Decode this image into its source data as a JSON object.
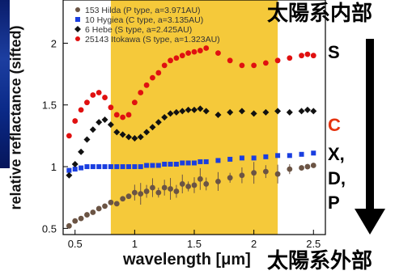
{
  "labels": {
    "inner": "太陽系内部",
    "outer": "太陽系外部",
    "xlabel": "wavelength [μm]",
    "ylabel": "relative reflactance (sifted)"
  },
  "classes": [
    {
      "text": "S",
      "color": "#000000"
    },
    {
      "text": "C",
      "color": "#e53410"
    },
    {
      "text": "X,",
      "color": "#000000"
    },
    {
      "text": "D,",
      "color": "#000000"
    },
    {
      "text": "P",
      "color": "#000000"
    }
  ],
  "colors": {
    "band": "#f5c93a",
    "arrow": "#000000"
  },
  "chart_data": {
    "type": "scatter",
    "xlabel": "wavelength [μm]",
    "ylabel": "relative reflactance (sifted)",
    "xlim": [
      0.4,
      2.6
    ],
    "ylim": [
      0.45,
      2.35
    ],
    "xticks": [
      0.5,
      1,
      1.5,
      2,
      2.5
    ],
    "xtick_labels": [
      "0.5",
      "1",
      "1.5",
      "2",
      "2.5"
    ],
    "yticks": [
      0.5,
      1,
      1.5,
      2
    ],
    "ytick_labels": [
      "0.5",
      "1",
      "1.5",
      "2"
    ],
    "shaded_band": {
      "x": [
        0.8,
        2.2
      ],
      "color": "#f5c93a"
    },
    "legend_position": "top-left",
    "series": [
      {
        "name": "153 Hilda (P type, a=3.971AU)",
        "color": "#6b5444",
        "marker": "circle",
        "x": [
          0.45,
          0.5,
          0.55,
          0.6,
          0.65,
          0.7,
          0.75,
          0.8,
          0.85,
          0.9,
          0.95,
          1.0,
          1.05,
          1.1,
          1.15,
          1.2,
          1.25,
          1.3,
          1.35,
          1.4,
          1.45,
          1.5,
          1.55,
          1.6,
          1.7,
          1.8,
          1.9,
          2.0,
          2.1,
          2.2,
          2.3,
          2.4,
          2.45,
          2.5
        ],
        "y": [
          0.52,
          0.56,
          0.58,
          0.61,
          0.63,
          0.66,
          0.68,
          0.71,
          0.7,
          0.74,
          0.76,
          0.79,
          0.78,
          0.8,
          0.83,
          0.79,
          0.83,
          0.82,
          0.8,
          0.86,
          0.84,
          0.85,
          0.9,
          0.86,
          0.88,
          0.91,
          0.93,
          0.95,
          0.96,
          0.94,
          0.98,
          0.99,
          1.0,
          1.01
        ]
      },
      {
        "name": "10 Hygiea (C type, a=3.135AU)",
        "color": "#1a3ee0",
        "marker": "square",
        "x": [
          0.45,
          0.5,
          0.55,
          0.6,
          0.65,
          0.7,
          0.75,
          0.8,
          0.85,
          0.9,
          0.95,
          1.0,
          1.05,
          1.1,
          1.15,
          1.2,
          1.25,
          1.3,
          1.35,
          1.4,
          1.45,
          1.5,
          1.55,
          1.6,
          1.7,
          1.8,
          1.9,
          2.0,
          2.1,
          2.2,
          2.3,
          2.4,
          2.5
        ],
        "y": [
          0.97,
          0.98,
          0.99,
          1.0,
          1.0,
          1.0,
          1.0,
          1.0,
          1.0,
          1.0,
          1.0,
          1.0,
          1.0,
          1.01,
          1.01,
          1.01,
          1.02,
          1.02,
          1.02,
          1.03,
          1.03,
          1.03,
          1.04,
          1.04,
          1.05,
          1.06,
          1.07,
          1.07,
          1.08,
          1.09,
          1.09,
          1.1,
          1.11
        ]
      },
      {
        "name": "6 Hebe (S type, a=2.425AU)",
        "color": "#111111",
        "marker": "diamond",
        "x": [
          0.45,
          0.5,
          0.55,
          0.6,
          0.65,
          0.7,
          0.75,
          0.8,
          0.85,
          0.9,
          0.95,
          1.0,
          1.05,
          1.1,
          1.15,
          1.2,
          1.25,
          1.3,
          1.35,
          1.4,
          1.45,
          1.5,
          1.55,
          1.6,
          1.7,
          1.8,
          1.9,
          2.0,
          2.1,
          2.2,
          2.3,
          2.4,
          2.45,
          2.5
        ],
        "y": [
          0.93,
          1.02,
          1.12,
          1.22,
          1.3,
          1.36,
          1.38,
          1.34,
          1.28,
          1.26,
          1.24,
          1.23,
          1.24,
          1.28,
          1.32,
          1.36,
          1.4,
          1.43,
          1.44,
          1.45,
          1.46,
          1.46,
          1.47,
          1.45,
          1.42,
          1.44,
          1.45,
          1.43,
          1.44,
          1.45,
          1.44,
          1.45,
          1.46,
          1.45
        ]
      },
      {
        "name": "25143 Itokawa (S type, a=1.323AU)",
        "color": "#e01010",
        "marker": "circle",
        "x": [
          0.45,
          0.5,
          0.55,
          0.6,
          0.65,
          0.7,
          0.75,
          0.8,
          0.85,
          0.9,
          0.95,
          1.0,
          1.05,
          1.1,
          1.15,
          1.2,
          1.25,
          1.3,
          1.35,
          1.4,
          1.45,
          1.5,
          1.55,
          1.6,
          1.7,
          1.8,
          1.9,
          2.0,
          2.1,
          2.2,
          2.3,
          2.4,
          2.45,
          2.5
        ],
        "y": [
          1.25,
          1.37,
          1.46,
          1.52,
          1.58,
          1.6,
          1.56,
          1.48,
          1.42,
          1.4,
          1.42,
          1.52,
          1.6,
          1.66,
          1.72,
          1.76,
          1.82,
          1.86,
          1.88,
          1.9,
          1.92,
          1.93,
          1.94,
          1.96,
          1.92,
          1.86,
          1.82,
          1.82,
          1.84,
          1.86,
          1.88,
          1.9,
          1.91,
          1.9
        ]
      }
    ]
  }
}
